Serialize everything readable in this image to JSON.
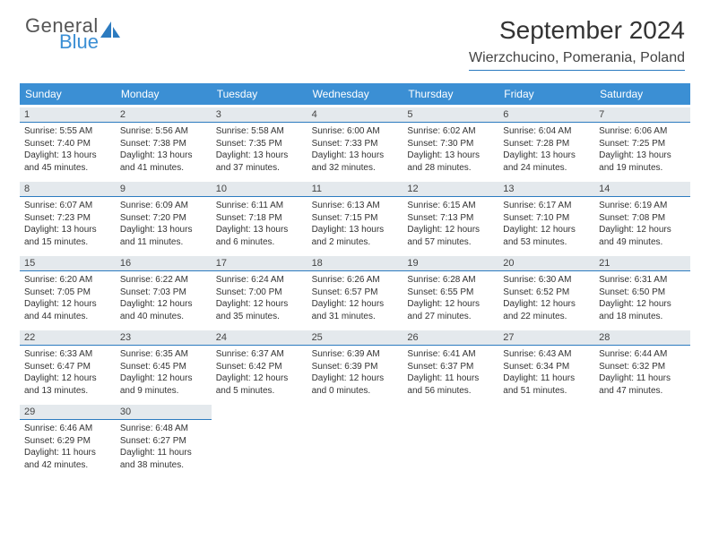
{
  "brand": {
    "text1": "General",
    "text2": "Blue"
  },
  "title": "September 2024",
  "location": "Wierzchucino, Pomerania, Poland",
  "colors": {
    "accent": "#3b8fd4",
    "accent_dark": "#2c7bc0",
    "daynum_bg": "#e4e9ed",
    "text": "#333333",
    "background": "#ffffff"
  },
  "day_headers": [
    "Sunday",
    "Monday",
    "Tuesday",
    "Wednesday",
    "Thursday",
    "Friday",
    "Saturday"
  ],
  "weeks": [
    [
      {
        "n": "1",
        "sunrise": "5:55 AM",
        "sunset": "7:40 PM",
        "daylight": "13 hours and 45 minutes."
      },
      {
        "n": "2",
        "sunrise": "5:56 AM",
        "sunset": "7:38 PM",
        "daylight": "13 hours and 41 minutes."
      },
      {
        "n": "3",
        "sunrise": "5:58 AM",
        "sunset": "7:35 PM",
        "daylight": "13 hours and 37 minutes."
      },
      {
        "n": "4",
        "sunrise": "6:00 AM",
        "sunset": "7:33 PM",
        "daylight": "13 hours and 32 minutes."
      },
      {
        "n": "5",
        "sunrise": "6:02 AM",
        "sunset": "7:30 PM",
        "daylight": "13 hours and 28 minutes."
      },
      {
        "n": "6",
        "sunrise": "6:04 AM",
        "sunset": "7:28 PM",
        "daylight": "13 hours and 24 minutes."
      },
      {
        "n": "7",
        "sunrise": "6:06 AM",
        "sunset": "7:25 PM",
        "daylight": "13 hours and 19 minutes."
      }
    ],
    [
      {
        "n": "8",
        "sunrise": "6:07 AM",
        "sunset": "7:23 PM",
        "daylight": "13 hours and 15 minutes."
      },
      {
        "n": "9",
        "sunrise": "6:09 AM",
        "sunset": "7:20 PM",
        "daylight": "13 hours and 11 minutes."
      },
      {
        "n": "10",
        "sunrise": "6:11 AM",
        "sunset": "7:18 PM",
        "daylight": "13 hours and 6 minutes."
      },
      {
        "n": "11",
        "sunrise": "6:13 AM",
        "sunset": "7:15 PM",
        "daylight": "13 hours and 2 minutes."
      },
      {
        "n": "12",
        "sunrise": "6:15 AM",
        "sunset": "7:13 PM",
        "daylight": "12 hours and 57 minutes."
      },
      {
        "n": "13",
        "sunrise": "6:17 AM",
        "sunset": "7:10 PM",
        "daylight": "12 hours and 53 minutes."
      },
      {
        "n": "14",
        "sunrise": "6:19 AM",
        "sunset": "7:08 PM",
        "daylight": "12 hours and 49 minutes."
      }
    ],
    [
      {
        "n": "15",
        "sunrise": "6:20 AM",
        "sunset": "7:05 PM",
        "daylight": "12 hours and 44 minutes."
      },
      {
        "n": "16",
        "sunrise": "6:22 AM",
        "sunset": "7:03 PM",
        "daylight": "12 hours and 40 minutes."
      },
      {
        "n": "17",
        "sunrise": "6:24 AM",
        "sunset": "7:00 PM",
        "daylight": "12 hours and 35 minutes."
      },
      {
        "n": "18",
        "sunrise": "6:26 AM",
        "sunset": "6:57 PM",
        "daylight": "12 hours and 31 minutes."
      },
      {
        "n": "19",
        "sunrise": "6:28 AM",
        "sunset": "6:55 PM",
        "daylight": "12 hours and 27 minutes."
      },
      {
        "n": "20",
        "sunrise": "6:30 AM",
        "sunset": "6:52 PM",
        "daylight": "12 hours and 22 minutes."
      },
      {
        "n": "21",
        "sunrise": "6:31 AM",
        "sunset": "6:50 PM",
        "daylight": "12 hours and 18 minutes."
      }
    ],
    [
      {
        "n": "22",
        "sunrise": "6:33 AM",
        "sunset": "6:47 PM",
        "daylight": "12 hours and 13 minutes."
      },
      {
        "n": "23",
        "sunrise": "6:35 AM",
        "sunset": "6:45 PM",
        "daylight": "12 hours and 9 minutes."
      },
      {
        "n": "24",
        "sunrise": "6:37 AM",
        "sunset": "6:42 PM",
        "daylight": "12 hours and 5 minutes."
      },
      {
        "n": "25",
        "sunrise": "6:39 AM",
        "sunset": "6:39 PM",
        "daylight": "12 hours and 0 minutes."
      },
      {
        "n": "26",
        "sunrise": "6:41 AM",
        "sunset": "6:37 PM",
        "daylight": "11 hours and 56 minutes."
      },
      {
        "n": "27",
        "sunrise": "6:43 AM",
        "sunset": "6:34 PM",
        "daylight": "11 hours and 51 minutes."
      },
      {
        "n": "28",
        "sunrise": "6:44 AM",
        "sunset": "6:32 PM",
        "daylight": "11 hours and 47 minutes."
      }
    ],
    [
      {
        "n": "29",
        "sunrise": "6:46 AM",
        "sunset": "6:29 PM",
        "daylight": "11 hours and 42 minutes."
      },
      {
        "n": "30",
        "sunrise": "6:48 AM",
        "sunset": "6:27 PM",
        "daylight": "11 hours and 38 minutes."
      },
      null,
      null,
      null,
      null,
      null
    ]
  ],
  "labels": {
    "sunrise_prefix": "Sunrise: ",
    "sunset_prefix": "Sunset: ",
    "daylight_prefix": "Daylight: "
  },
  "typography": {
    "title_fontsize_pt": 21,
    "location_fontsize_pt": 12,
    "header_fontsize_pt": 9,
    "cell_fontsize_pt": 7.5
  }
}
